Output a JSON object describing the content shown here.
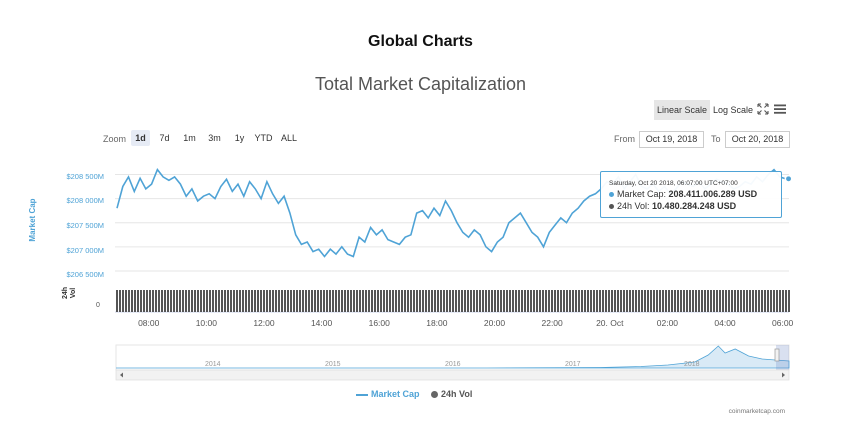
{
  "page": {
    "title": "Global Charts"
  },
  "chart_header": {
    "title": "Total Market Capitalization",
    "scale_buttons": [
      {
        "label": "Linear Scale",
        "selected": true
      },
      {
        "label": "Log Scale",
        "selected": false
      }
    ],
    "zoom_label": "Zoom",
    "zoom_buttons": [
      {
        "label": "1d",
        "selected": true
      },
      {
        "label": "7d",
        "selected": false
      },
      {
        "label": "1m",
        "selected": false
      },
      {
        "label": "3m",
        "selected": false
      },
      {
        "label": "1y",
        "selected": false
      },
      {
        "label": "YTD",
        "selected": false
      },
      {
        "label": "ALL",
        "selected": false
      }
    ],
    "from_label": "From",
    "from_value": "Oct 19, 2018",
    "to_label": "To",
    "to_value": "Oct 20, 2018",
    "fullscreen_icon": "fullscreen-icon",
    "menu_icon": "hamburger-menu-icon"
  },
  "tooltip": {
    "time": "Saturday, Oct 20 2018, 06:07:00 UTC+07:00",
    "market_cap_label": "Market Cap:",
    "market_cap_value": "208.411.006.289 USD",
    "vol_label": "24h Vol:",
    "vol_value": "10.480.284.248 USD"
  },
  "legend": {
    "market_cap": "Market Cap",
    "vol": "24h Vol"
  },
  "credit": "coinmarketcap.com",
  "colors": {
    "line": "#4fa3d6",
    "volume": "#555555",
    "selected_button": "#e6ebf5",
    "grid": "#e6e6e6"
  },
  "chart_data": {
    "type": "line",
    "xlabel": "",
    "ylabel": "Market Cap",
    "vol_axis_label": "24h Vol",
    "vol_axis_tick": "0",
    "x_range_hours": [
      6.83,
      30.22
    ],
    "y_range": [
      206250000000,
      208800000000
    ],
    "y_ticks": [
      {
        "value": 206500000000,
        "label": "$206 500M"
      },
      {
        "value": 207000000000,
        "label": "$207 000M"
      },
      {
        "value": 207500000000,
        "label": "$207 500M"
      },
      {
        "value": 208000000000,
        "label": "$208 000M"
      },
      {
        "value": 208500000000,
        "label": "$208 500M"
      }
    ],
    "x_ticks": [
      {
        "hour": 8,
        "label": "08:00"
      },
      {
        "hour": 10,
        "label": "10:00"
      },
      {
        "hour": 12,
        "label": "12:00"
      },
      {
        "hour": 14,
        "label": "14:00"
      },
      {
        "hour": 16,
        "label": "16:00"
      },
      {
        "hour": 18,
        "label": "18:00"
      },
      {
        "hour": 20,
        "label": "20:00"
      },
      {
        "hour": 22,
        "label": "22:00"
      },
      {
        "hour": 24,
        "label": "20. Oct"
      },
      {
        "hour": 26,
        "label": "02:00"
      },
      {
        "hour": 28,
        "label": "04:00"
      },
      {
        "hour": 30,
        "label": "06:00"
      }
    ],
    "series": [
      {
        "name": "Market Cap",
        "x": [
          6.9,
          7.1,
          7.3,
          7.5,
          7.7,
          7.9,
          8.1,
          8.3,
          8.5,
          8.7,
          8.9,
          9.1,
          9.3,
          9.5,
          9.7,
          9.9,
          10.1,
          10.3,
          10.5,
          10.7,
          10.9,
          11.1,
          11.3,
          11.5,
          11.7,
          11.9,
          12.1,
          12.3,
          12.5,
          12.7,
          12.9,
          13.1,
          13.3,
          13.5,
          13.7,
          13.9,
          14.1,
          14.3,
          14.5,
          14.7,
          14.9,
          15.1,
          15.3,
          15.5,
          15.7,
          15.9,
          16.1,
          16.3,
          16.5,
          16.7,
          16.9,
          17.1,
          17.3,
          17.5,
          17.7,
          17.9,
          18.1,
          18.3,
          18.5,
          18.7,
          18.9,
          19.1,
          19.3,
          19.5,
          19.7,
          19.9,
          20.1,
          20.3,
          20.5,
          20.7,
          20.9,
          21.1,
          21.3,
          21.5,
          21.7,
          21.9,
          22.1,
          22.3,
          22.5,
          22.7,
          22.9,
          23.1,
          23.3,
          23.5,
          23.7,
          23.9,
          24.1,
          24.3,
          24.5,
          24.7,
          24.9,
          25.1,
          25.3,
          25.5,
          25.7,
          25.9,
          26.1,
          26.3,
          26.5,
          26.7,
          26.9,
          27.1,
          27.3,
          27.5,
          27.7,
          27.9,
          28.1,
          28.3,
          28.5,
          28.7,
          28.9,
          29.1,
          29.3,
          29.5,
          29.7,
          29.9,
          30.1
        ],
        "values": [
          207800000000,
          208250000000,
          208450000000,
          208150000000,
          208420000000,
          208200000000,
          208300000000,
          208600000000,
          208450000000,
          208380000000,
          208450000000,
          208300000000,
          208050000000,
          208200000000,
          207950000000,
          208050000000,
          208100000000,
          208000000000,
          208250000000,
          208400000000,
          208150000000,
          208300000000,
          208050000000,
          208350000000,
          208200000000,
          208000000000,
          208350000000,
          208100000000,
          207900000000,
          208050000000,
          207700000000,
          207250000000,
          207050000000,
          207100000000,
          206900000000,
          206950000000,
          206800000000,
          206950000000,
          206850000000,
          207000000000,
          206850000000,
          206800000000,
          207200000000,
          207100000000,
          207400000000,
          207250000000,
          207350000000,
          207150000000,
          207100000000,
          207050000000,
          207200000000,
          207250000000,
          207700000000,
          207750000000,
          207600000000,
          207800000000,
          207650000000,
          207950000000,
          207750000000,
          207500000000,
          207300000000,
          207200000000,
          207350000000,
          207250000000,
          207000000000,
          206900000000,
          207100000000,
          207200000000,
          207500000000,
          207600000000,
          207700000000,
          207500000000,
          207300000000,
          207200000000,
          207000000000,
          207300000000,
          207450000000,
          207600000000,
          207500000000,
          207700000000,
          207800000000,
          207950000000,
          208050000000,
          208100000000,
          208200000000,
          208350000000,
          208300000000,
          208450000000,
          208200000000,
          208350000000,
          208500000000,
          208250000000,
          208200000000,
          208300000000,
          208150000000,
          208250000000,
          208100000000,
          208200000000,
          208350000000,
          208300000000,
          208250000000,
          208350000000,
          208200000000,
          208300000000,
          208400000000,
          208350000000,
          208300000000,
          208200000000,
          208250000000,
          208350000000,
          208300000000,
          208450000000,
          208350000000,
          208500000000,
          208600000000,
          208450000000,
          208411006289
        ]
      }
    ],
    "navigator": {
      "type": "area",
      "x_labels": [
        "2014",
        "2015",
        "2016",
        "2017",
        "2018"
      ]
    }
  }
}
